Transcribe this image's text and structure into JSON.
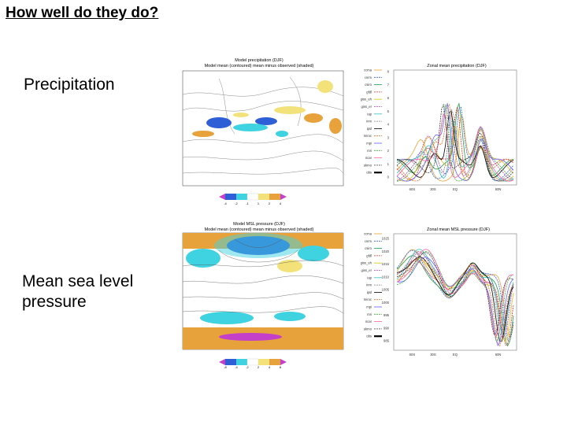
{
  "slide": {
    "title": "How well do they do?",
    "precip_label": "Precipitation",
    "mslp_label_line1": "Mean sea level",
    "mslp_label_line2": "pressure"
  },
  "precip_map": {
    "title1": "Model precipitation (DJF)",
    "title2": "Model mean (contoured)  mean minus observed (shaded)",
    "colorbar_ticks": [
      "-4",
      "-2",
      "-1",
      "1",
      "2",
      "4"
    ]
  },
  "precip_zonal": {
    "title": "Zonal mean precipitation (DJF)",
    "y_ticks": [
      "8",
      "7",
      "6",
      "5",
      "4",
      "3",
      "2",
      "1",
      "0"
    ],
    "x_ticks": [
      "60S",
      "30S",
      "EQ",
      "60N"
    ]
  },
  "mslp_map": {
    "title1": "Model MSL pressure (DJF)",
    "title2": "Model mean (contoured)  mean minus observed (shaded)",
    "colorbar_ticks": [
      "-8",
      "-4",
      "-2",
      "2",
      "4",
      "8"
    ]
  },
  "mslp_zonal": {
    "title": "Zonal mean MSL pressure (DJF)",
    "y_ticks": [
      "1025",
      "1020",
      "1015",
      "1010",
      "1005",
      "1000",
      "995",
      "990",
      "985"
    ],
    "x_ticks": [
      "60S",
      "30S",
      "EQ",
      "60N"
    ]
  },
  "legend_models": [
    "ccma",
    "cnrm",
    "csiro",
    "gfdl",
    "giss_eh",
    "giss_er",
    "iap",
    "inm",
    "ipsl",
    "miroc",
    "mpi",
    "mri",
    "ncar",
    "ukmo",
    "obs"
  ],
  "colors": {
    "blue": "#2f5fd6",
    "cyan": "#3fd2e0",
    "lightcyan": "#bff0f3",
    "yellow": "#f3e27a",
    "orange": "#e8a23c",
    "magenta": "#c440c8"
  }
}
